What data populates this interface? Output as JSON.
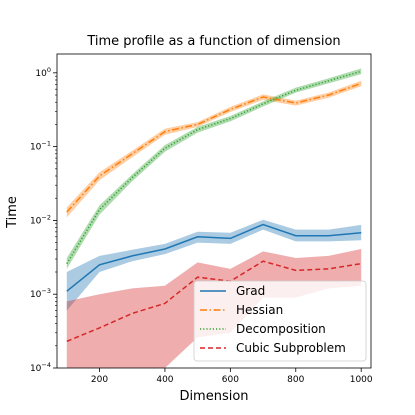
{
  "chart_data": {
    "type": "line",
    "title": "Time profile as a function of dimension",
    "xlabel": "Dimension",
    "ylabel": "Time",
    "xlim": [
      70,
      1030
    ],
    "ylim": [
      0.0001,
      1.8
    ],
    "yscale": "log",
    "x_ticks": [
      200,
      400,
      600,
      800,
      1000
    ],
    "y_ticks": [
      {
        "value": 0.0001,
        "base": "10",
        "exp": "−4"
      },
      {
        "value": 0.001,
        "base": "10",
        "exp": "−3"
      },
      {
        "value": 0.01,
        "base": "10",
        "exp": "−2"
      },
      {
        "value": 0.1,
        "base": "10",
        "exp": "−1"
      },
      {
        "value": 1,
        "base": "10",
        "exp": "0"
      }
    ],
    "grid": false,
    "legend_position": "lower-right",
    "x": [
      100,
      200,
      300,
      400,
      500,
      600,
      700,
      800,
      900,
      1000
    ],
    "series": [
      {
        "name": "Grad",
        "color": "#1f77b4",
        "dash": "solid",
        "values": [
          0.0011,
          0.0025,
          0.0033,
          0.0041,
          0.006,
          0.0057,
          0.0088,
          0.0062,
          0.0062,
          0.0068
        ],
        "lower": [
          0.0006,
          0.002,
          0.0028,
          0.0035,
          0.005,
          0.0048,
          0.0075,
          0.0052,
          0.0052,
          0.0054
        ],
        "upper": [
          0.002,
          0.0033,
          0.004,
          0.0048,
          0.007,
          0.0068,
          0.0102,
          0.0075,
          0.0075,
          0.0087
        ]
      },
      {
        "name": "Hessian",
        "color": "#ff7f0e",
        "dash": "dashdot",
        "values": [
          0.013,
          0.04,
          0.08,
          0.16,
          0.2,
          0.32,
          0.47,
          0.39,
          0.5,
          0.72
        ],
        "lower": [
          0.011,
          0.035,
          0.072,
          0.145,
          0.185,
          0.295,
          0.43,
          0.36,
          0.46,
          0.66
        ],
        "upper": [
          0.015,
          0.045,
          0.088,
          0.175,
          0.215,
          0.345,
          0.51,
          0.42,
          0.54,
          0.78
        ]
      },
      {
        "name": "Decomposition",
        "color": "#2ca02c",
        "dash": "dotted",
        "values": [
          0.0026,
          0.014,
          0.038,
          0.095,
          0.17,
          0.24,
          0.38,
          0.58,
          0.78,
          1.05
        ],
        "lower": [
          0.0022,
          0.012,
          0.034,
          0.085,
          0.155,
          0.22,
          0.35,
          0.54,
          0.72,
          0.96
        ],
        "upper": [
          0.0031,
          0.016,
          0.042,
          0.105,
          0.185,
          0.26,
          0.41,
          0.63,
          0.84,
          1.15
        ]
      },
      {
        "name": "Cubic Subproblem",
        "color": "#d62728",
        "dash": "dashed",
        "values": [
          0.00023,
          0.00035,
          0.00055,
          0.00075,
          0.0017,
          0.0015,
          0.0028,
          0.0021,
          0.0022,
          0.0026
        ],
        "lower": [
          0.0001,
          0.0001,
          0.0001,
          0.0001,
          0.00026,
          0.0003,
          0.0009,
          0.0009,
          0.0012,
          0.0013
        ],
        "upper": [
          0.0008,
          0.001,
          0.0012,
          0.0013,
          0.0027,
          0.0022,
          0.0038,
          0.0031,
          0.0033,
          0.0041
        ]
      }
    ]
  }
}
